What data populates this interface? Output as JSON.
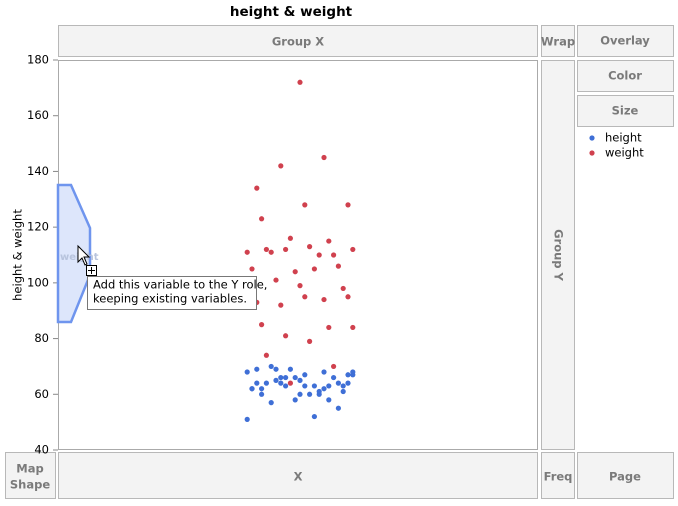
{
  "chart_data": {
    "type": "scatter",
    "title": "height & weight",
    "ylabel": "height & weight",
    "ylim": [
      40,
      180
    ],
    "yticks": [
      40,
      60,
      80,
      100,
      120,
      140,
      160,
      180
    ],
    "series": [
      {
        "name": "height",
        "color": "#3f6fd6",
        "values": [
          51,
          52,
          57,
          55,
          58,
          62,
          60,
          65,
          61,
          60,
          64,
          62,
          66,
          64,
          67,
          62,
          63,
          66,
          67,
          60,
          64,
          66,
          69,
          68,
          63,
          70,
          64,
          66,
          62,
          61,
          69,
          63,
          65,
          69,
          68,
          64,
          67,
          63,
          60,
          58,
          63,
          68
        ]
      },
      {
        "name": "weight",
        "color": "#d0414e",
        "values": [
          172,
          134,
          145,
          142,
          128,
          128,
          123,
          115,
          112,
          112,
          113,
          112,
          110,
          116,
          111,
          105,
          111,
          106,
          104,
          105,
          110,
          101,
          98,
          99,
          93,
          94,
          92,
          95,
          95,
          85,
          84,
          81,
          84,
          79,
          74,
          70,
          64
        ]
      }
    ]
  },
  "zones": {
    "group_x": "Group X",
    "wrap": "Wrap",
    "overlay": "Overlay",
    "color": "Color",
    "size": "Size",
    "group_y": "Group Y",
    "map_shape": [
      "Map",
      "Shape"
    ],
    "x": "X",
    "freq": "Freq",
    "page": "Page"
  },
  "drag_label": "weight",
  "tooltip": [
    "Add this variable to the Y role,",
    "keeping existing variables."
  ]
}
